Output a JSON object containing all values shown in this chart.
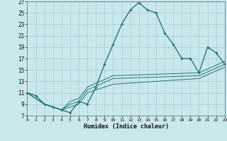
{
  "xlabel": "Humidex (Indice chaleur)",
  "bg_color": "#c8e8ec",
  "grid_color": "#a8cdd4",
  "line_color": "#1a6b6b",
  "main_line": {
    "x": [
      0,
      1,
      2,
      3,
      4,
      5,
      6,
      7,
      8,
      9,
      10,
      11,
      12,
      13,
      14,
      15,
      16,
      17,
      18,
      19,
      20,
      21,
      22,
      23
    ],
    "y": [
      11,
      10.5,
      9,
      8.5,
      8,
      7.5,
      9.5,
      9,
      12,
      16,
      19.5,
      23,
      25.5,
      26.8,
      25.5,
      25,
      21.5,
      19.5,
      17,
      17,
      14.5,
      19,
      18,
      16
    ]
  },
  "sub_line1": {
    "x": [
      0,
      2,
      3,
      4,
      5,
      6,
      7,
      10,
      20,
      23
    ],
    "y": [
      11,
      9,
      8.5,
      8,
      9.5,
      10,
      12,
      14,
      14.5,
      16.5
    ]
  },
  "sub_line2": {
    "x": [
      0,
      2,
      3,
      4,
      5,
      6,
      7,
      10,
      20,
      23
    ],
    "y": [
      11,
      9,
      8.5,
      8,
      9.0,
      9.5,
      11.5,
      13.5,
      14,
      16
    ]
  },
  "sub_line3": {
    "x": [
      0,
      2,
      3,
      4,
      5,
      6,
      7,
      10,
      20,
      23
    ],
    "y": [
      11,
      9,
      8.5,
      8,
      8.5,
      9.0,
      11,
      12.5,
      13.5,
      15.5
    ]
  },
  "xlim": [
    0,
    23
  ],
  "ylim": [
    7,
    27
  ],
  "xticks": [
    0,
    1,
    2,
    3,
    4,
    5,
    6,
    7,
    8,
    9,
    10,
    11,
    12,
    13,
    14,
    15,
    16,
    17,
    18,
    19,
    20,
    21,
    22,
    23
  ],
  "yticks": [
    7,
    9,
    11,
    13,
    15,
    17,
    19,
    21,
    23,
    25,
    27
  ]
}
